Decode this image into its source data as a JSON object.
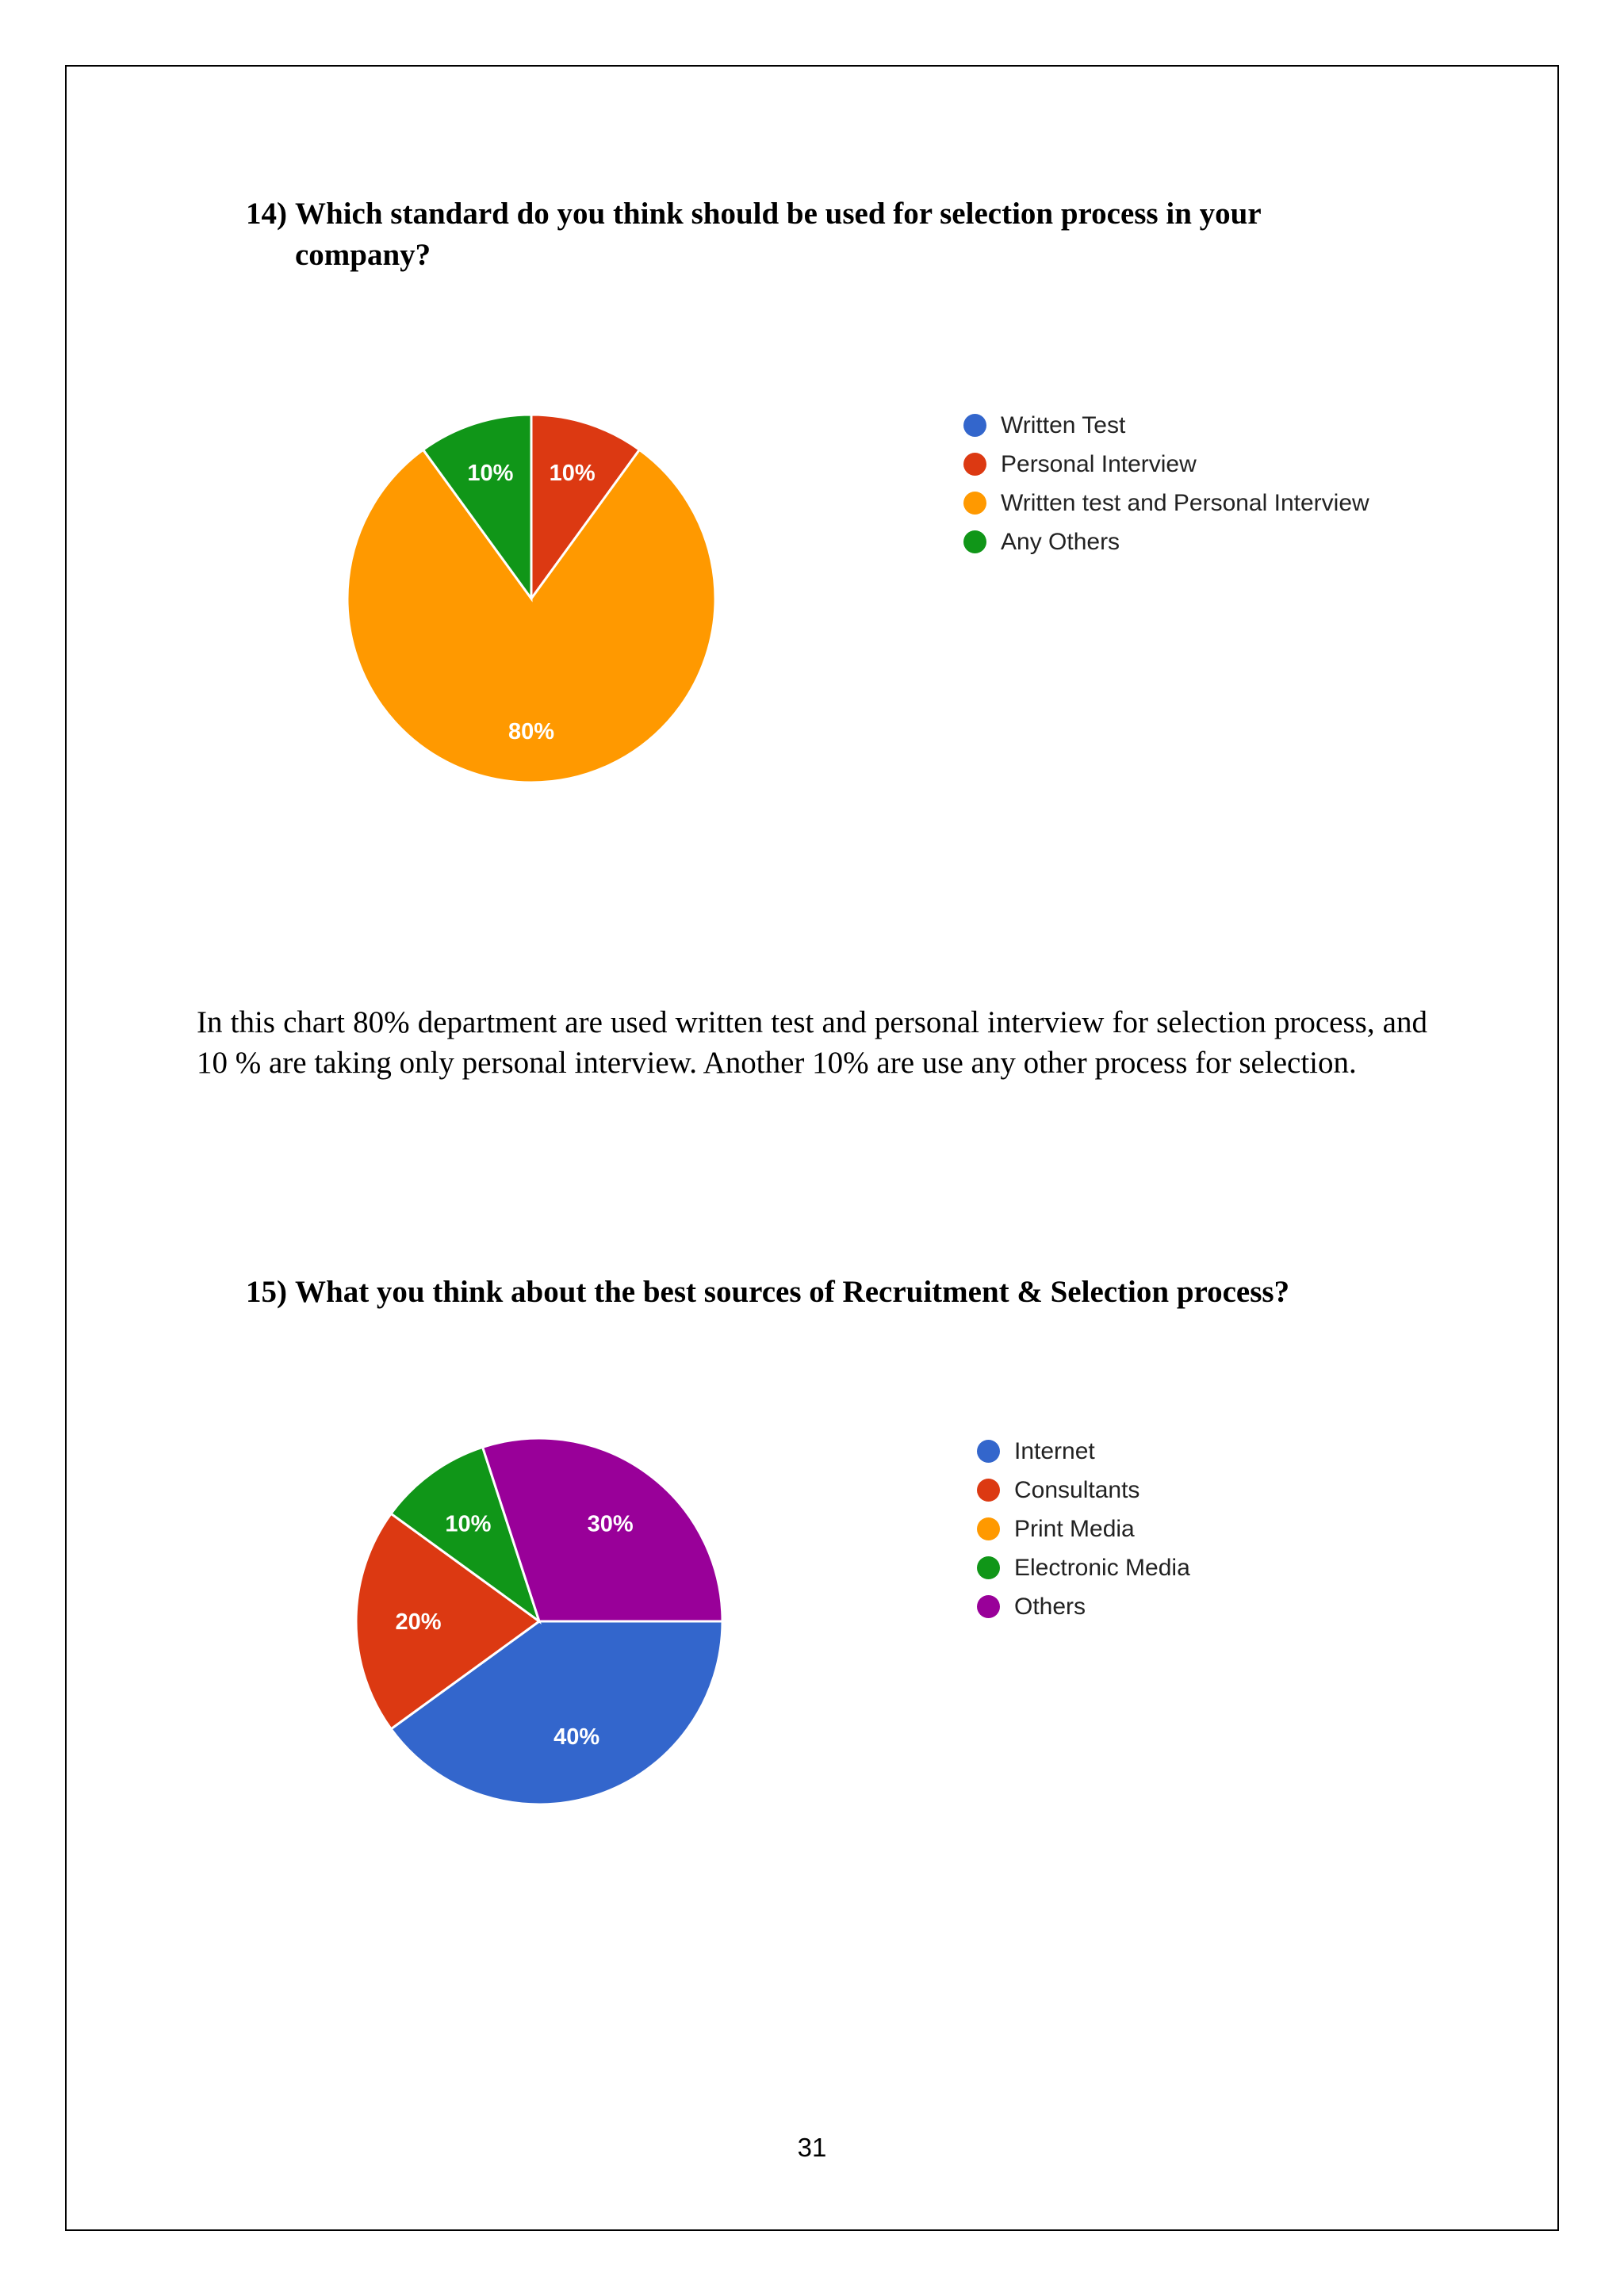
{
  "questions": [
    {
      "number": "14)",
      "text_line1": "Which standard do you think should be used for selection process in your",
      "text_line2": "company?"
    },
    {
      "number": "15)",
      "text_line1": "What you think about the best sources of Recruitment & Selection process?"
    }
  ],
  "paragraph": "In this chart 80% department are used written test and personal interview for selection process, and 10 % are taking only personal interview. Another 10% are use any other process for selection.",
  "page_number": "31",
  "chart_data": [
    {
      "type": "pie",
      "categories": [
        "Written Test",
        "Personal Interview",
        "Written test and Personal Interview",
        "Any Others"
      ],
      "values": [
        0,
        10,
        80,
        10
      ],
      "labels": [
        "",
        "10%",
        "80%",
        "10%"
      ],
      "colors": [
        "#3366cc",
        "#dc3912",
        "#ff9900",
        "#109618"
      ],
      "legend_position": "right"
    },
    {
      "type": "pie",
      "categories": [
        "Internet",
        "Consultants",
        "Print Media",
        "Electronic Media",
        "Others"
      ],
      "values": [
        40,
        20,
        0,
        10,
        30
      ],
      "labels": [
        "40%",
        "20%",
        "",
        "10%",
        "30%"
      ],
      "colors": [
        "#3366cc",
        "#dc3912",
        "#ff9900",
        "#109618",
        "#990099"
      ],
      "legend_position": "right"
    }
  ]
}
